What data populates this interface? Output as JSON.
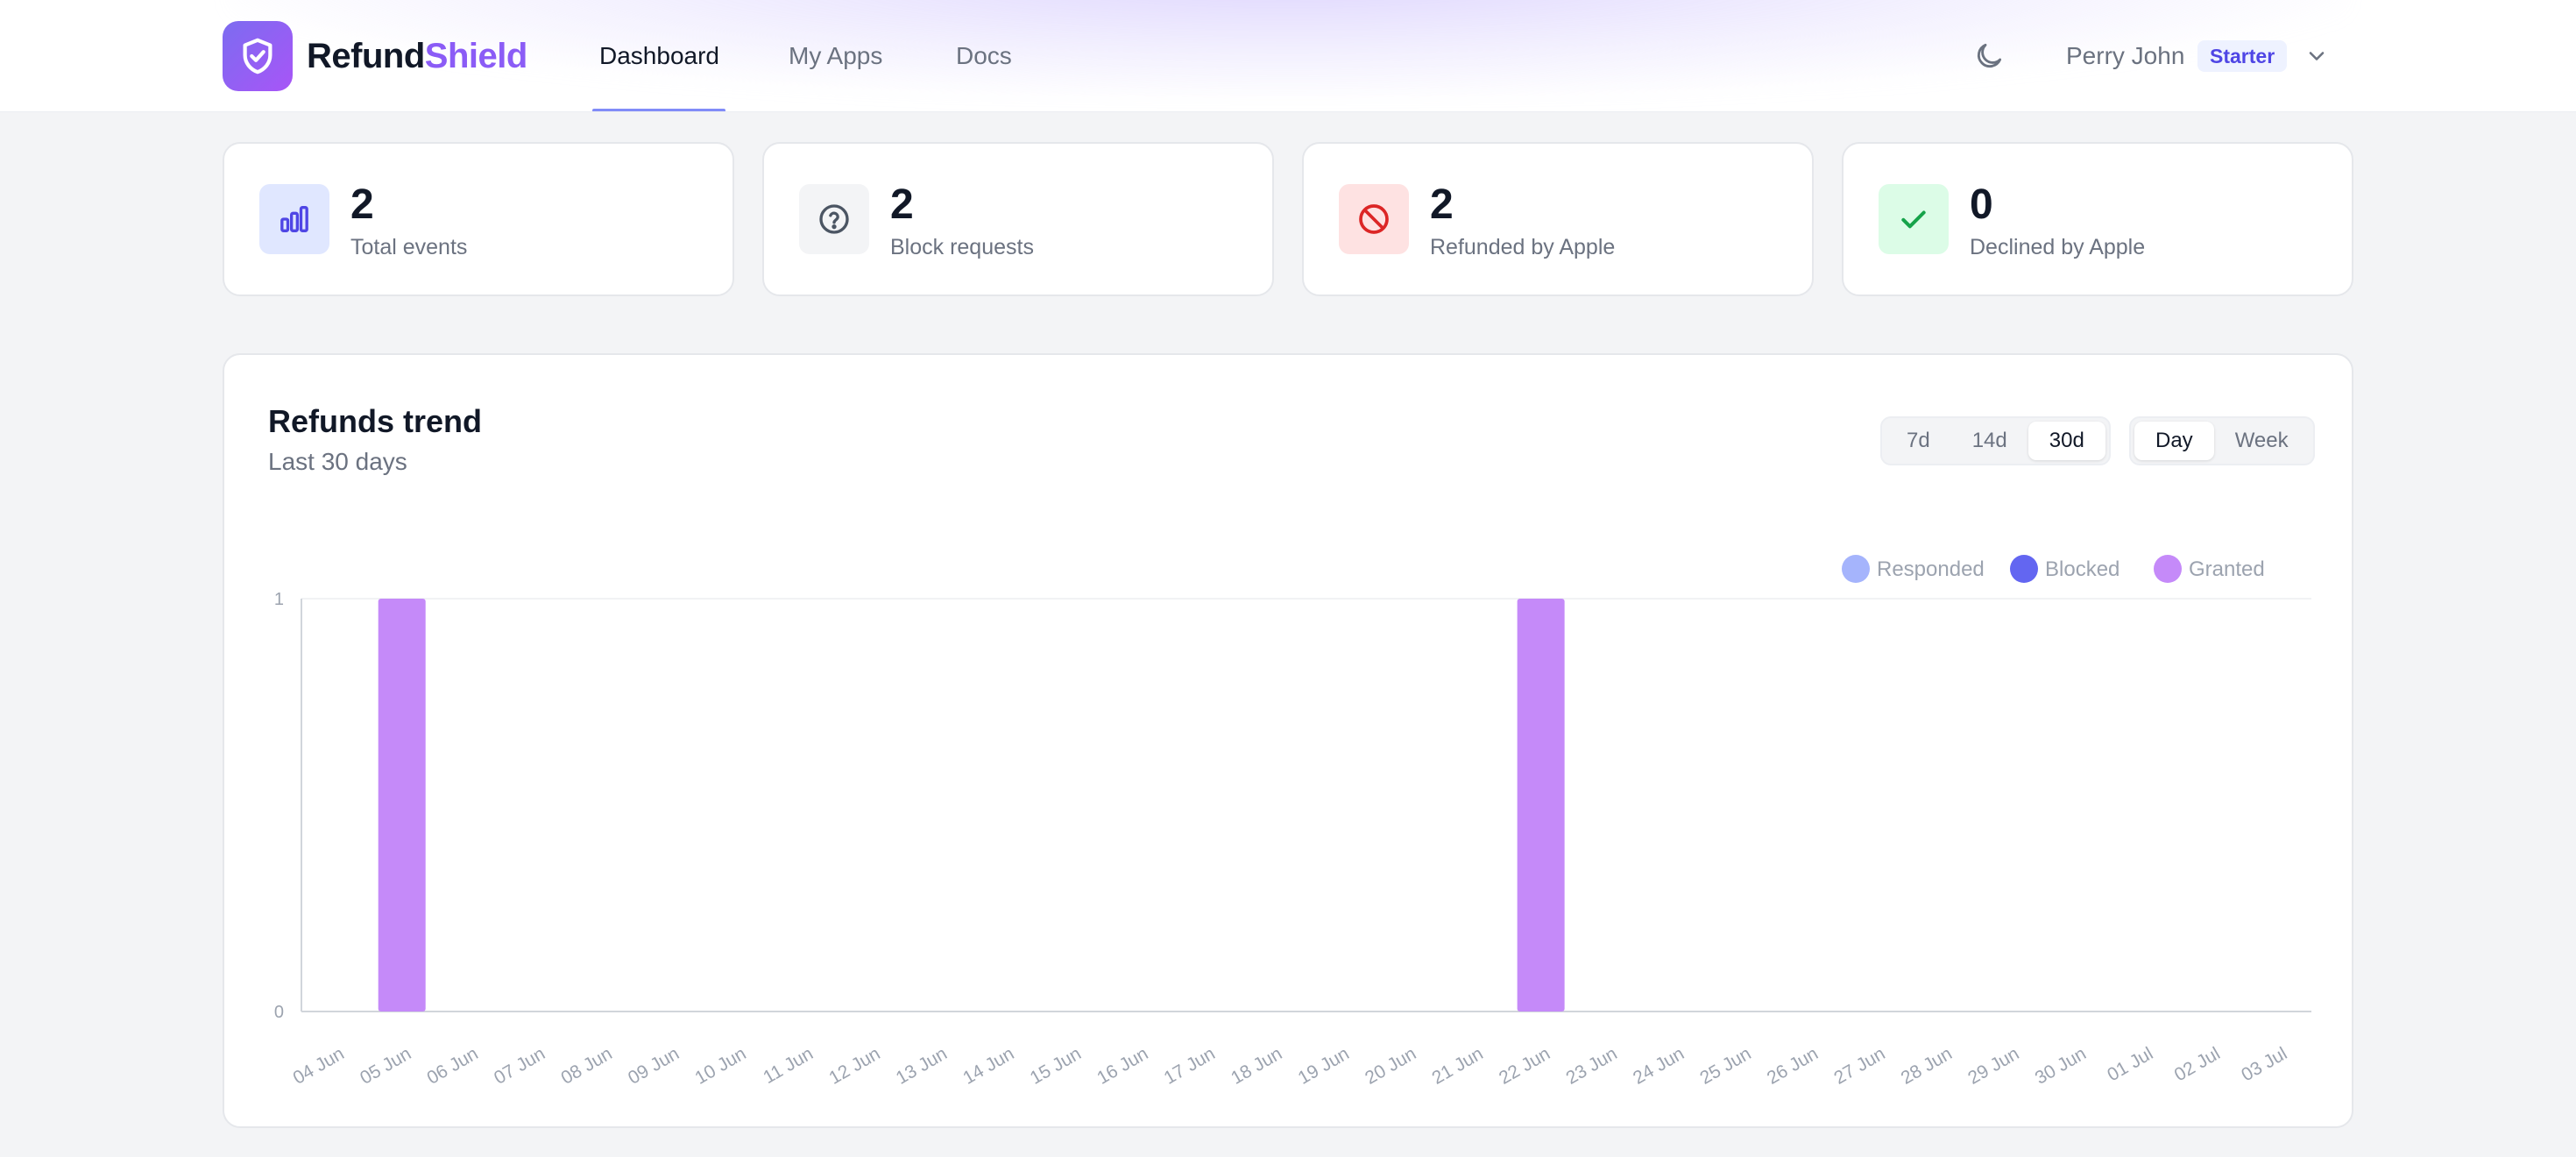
{
  "header": {
    "brand_part1": "Refund",
    "brand_part2": "Shield",
    "nav": [
      {
        "label": "Dashboard",
        "active": true
      },
      {
        "label": "My Apps",
        "active": false
      },
      {
        "label": "Docs",
        "active": false
      }
    ],
    "user_name": "Perry John",
    "plan": "Starter",
    "icons": {
      "logo": "shield-check-icon",
      "theme": "moon-icon",
      "menu": "chevron-down-icon"
    }
  },
  "stats": [
    {
      "value": "2",
      "label": "Total events",
      "icon": "bar-chart-icon",
      "icon_bg": "#e0e7ff",
      "icon_color": "#4f46e5"
    },
    {
      "value": "2",
      "label": "Block requests",
      "icon": "question-circle-icon",
      "icon_bg": "#f3f4f6",
      "icon_color": "#4b5563"
    },
    {
      "value": "2",
      "label": "Refunded by Apple",
      "icon": "ban-icon",
      "icon_bg": "#fee2e2",
      "icon_color": "#dc2626"
    },
    {
      "value": "0",
      "label": "Declined by Apple",
      "icon": "check-icon",
      "icon_bg": "#dcfce7",
      "icon_color": "#16a34a"
    }
  ],
  "chart_card": {
    "title": "Refunds trend",
    "subtitle": "Last 30 days",
    "range_options": [
      {
        "label": "7d",
        "selected": false
      },
      {
        "label": "14d",
        "selected": false
      },
      {
        "label": "30d",
        "selected": true
      }
    ],
    "granularity_options": [
      {
        "label": "Day",
        "selected": true
      },
      {
        "label": "Week",
        "selected": false
      }
    ]
  },
  "chart_data": {
    "type": "bar",
    "stacked": true,
    "categories": [
      "04 Jun",
      "05 Jun",
      "06 Jun",
      "07 Jun",
      "08 Jun",
      "09 Jun",
      "10 Jun",
      "11 Jun",
      "12 Jun",
      "13 Jun",
      "14 Jun",
      "15 Jun",
      "16 Jun",
      "17 Jun",
      "18 Jun",
      "19 Jun",
      "20 Jun",
      "21 Jun",
      "22 Jun",
      "23 Jun",
      "24 Jun",
      "25 Jun",
      "26 Jun",
      "27 Jun",
      "28 Jun",
      "29 Jun",
      "30 Jun",
      "01 Jul",
      "02 Jul",
      "03 Jul"
    ],
    "series": [
      {
        "name": "Responded",
        "color": "#a5b4fc",
        "values": [
          0,
          0,
          0,
          0,
          0,
          0,
          0,
          0,
          0,
          0,
          0,
          0,
          0,
          0,
          0,
          0,
          0,
          0,
          0,
          0,
          0,
          0,
          0,
          0,
          0,
          0,
          0,
          0,
          0,
          0
        ]
      },
      {
        "name": "Blocked",
        "color": "#6366f1",
        "values": [
          0,
          0,
          0,
          0,
          0,
          0,
          0,
          0,
          0,
          0,
          0,
          0,
          0,
          0,
          0,
          0,
          0,
          0,
          0,
          0,
          0,
          0,
          0,
          0,
          0,
          0,
          0,
          0,
          0,
          0
        ]
      },
      {
        "name": "Granted",
        "color": "#c58af9",
        "values": [
          0,
          1,
          0,
          0,
          0,
          0,
          0,
          0,
          0,
          0,
          0,
          0,
          0,
          0,
          0,
          0,
          0,
          0,
          1,
          0,
          0,
          0,
          0,
          0,
          0,
          0,
          0,
          0,
          0,
          0
        ]
      }
    ],
    "yticks": [
      "0",
      "1"
    ],
    "ylim": [
      0,
      1
    ],
    "grid": false,
    "legend_position": "top-right"
  }
}
